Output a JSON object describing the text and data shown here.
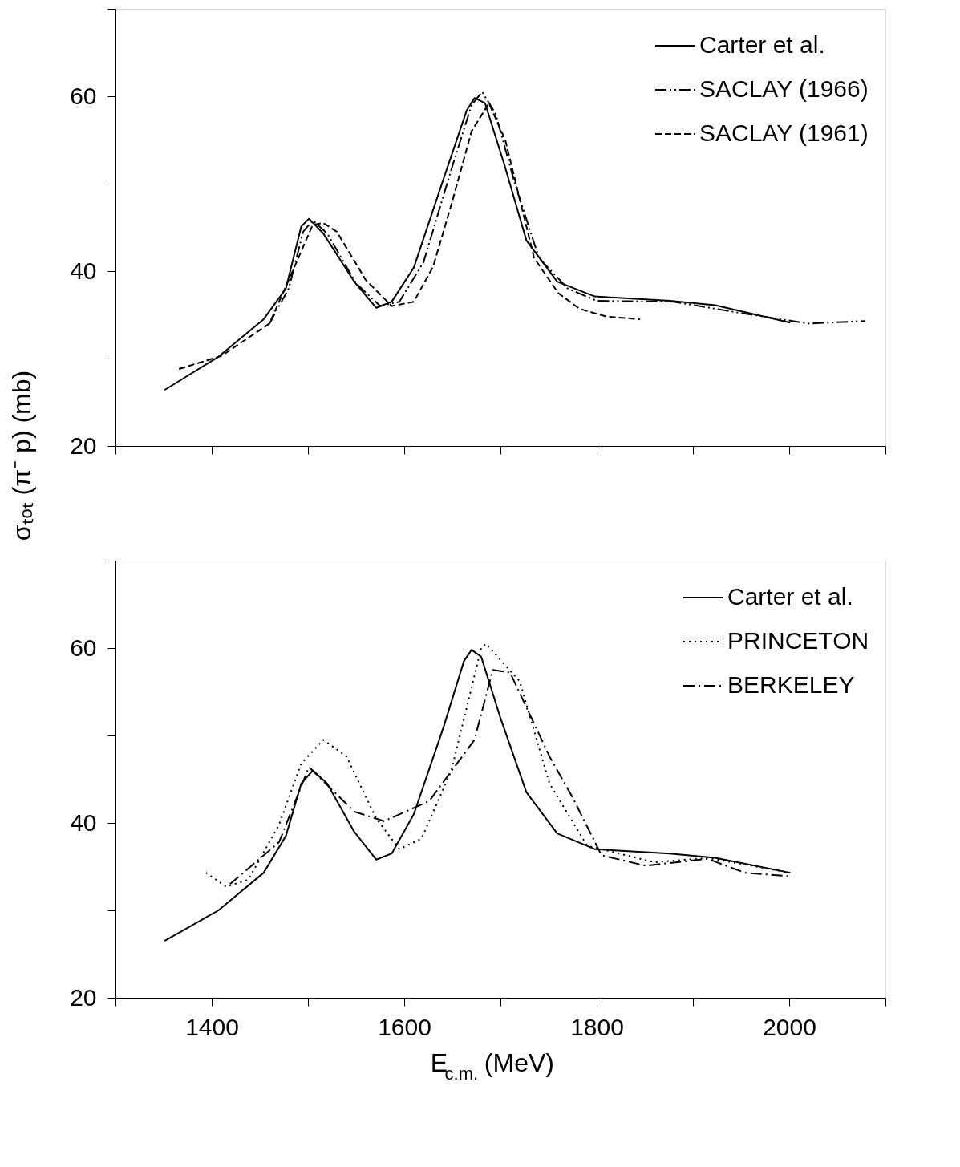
{
  "chart_data": [
    {
      "type": "line",
      "ylabel": "σₜₒₜ (π⁻ p) (mb)",
      "xlim": [
        1300,
        2100
      ],
      "ylim": [
        20,
        70
      ],
      "xticks": [
        {
          "value": 1300,
          "label": null
        },
        {
          "value": 1400,
          "label": null
        },
        {
          "value": 1500,
          "label": null
        },
        {
          "value": 1600,
          "label": null
        },
        {
          "value": 1700,
          "label": null
        },
        {
          "value": 1800,
          "label": null
        },
        {
          "value": 1900,
          "label": null
        },
        {
          "value": 2000,
          "label": null
        },
        {
          "value": 2100,
          "label": null
        }
      ],
      "yticks": [
        20,
        {
          "value": 30,
          "label": null
        },
        40,
        {
          "value": 50,
          "label": null
        },
        60,
        {
          "value": 70,
          "label": null
        }
      ],
      "tick_labels": "y",
      "grid": false,
      "legend": "top right",
      "marker": "none",
      "series": [
        {
          "name": "Carter et al.",
          "color": "#000000",
          "line_style": "solid",
          "x": [
            1351,
            1407,
            1454,
            1477,
            1493,
            1501,
            1516,
            1548,
            1571,
            1587,
            1610,
            1641,
            1665,
            1673,
            1684,
            1704,
            1727,
            1759,
            1798,
            1876,
            1923,
            2001
          ],
          "values": [
            26.4,
            30.2,
            34.5,
            38,
            45.1,
            46,
            44.3,
            38.8,
            35.8,
            36.5,
            40.4,
            50.6,
            58.4,
            59.8,
            59.2,
            52.2,
            43.5,
            38.8,
            37.1,
            36.6,
            36.1,
            34.1
          ]
        },
        {
          "name": "SACLAY (1966)",
          "color": "#000000",
          "line_style": "dashdotdot",
          "x": [
            1460,
            1480,
            1495,
            1505,
            1520,
            1550,
            1575,
            1595,
            1620,
            1650,
            1670,
            1681,
            1695,
            1715,
            1740,
            1770,
            1800,
            1880,
            1950,
            2020,
            2079
          ],
          "values": [
            34,
            38,
            44.5,
            45.8,
            44.3,
            38.6,
            36,
            36.5,
            41,
            52,
            59,
            60.5,
            58,
            50,
            41.5,
            38,
            36.6,
            36.5,
            35.2,
            34,
            34.3
          ]
        },
        {
          "name": "SACLAY (1961)",
          "color": "#000000",
          "line_style": "dashed",
          "x": [
            1366,
            1410,
            1460,
            1490,
            1505,
            1516,
            1530,
            1560,
            1587,
            1610,
            1630,
            1650,
            1670,
            1688,
            1705,
            1735,
            1760,
            1782,
            1810,
            1845
          ],
          "values": [
            28.8,
            30.3,
            34,
            41.5,
            45.3,
            45.5,
            44.5,
            39,
            36,
            36.5,
            40.5,
            48,
            56,
            59.2,
            55,
            41.5,
            37.5,
            35.7,
            34.8,
            34.5
          ]
        }
      ]
    },
    {
      "type": "line",
      "xlabel": "E$_{c.m.}$ (MeV)",
      "xlim": [
        1300,
        2100
      ],
      "ylim": [
        20,
        70
      ],
      "xticks": [
        {
          "value": 1300,
          "label": null
        },
        1400,
        {
          "value": 1500,
          "label": null
        },
        1600,
        {
          "value": 1700,
          "label": null
        },
        1800,
        {
          "value": 1900,
          "label": null
        },
        2000,
        {
          "value": 2100,
          "label": null
        }
      ],
      "yticks": [
        20,
        {
          "value": 30,
          "label": null
        },
        40,
        {
          "value": 50,
          "label": null
        },
        60,
        {
          "value": 70,
          "label": null
        }
      ],
      "grid": false,
      "legend": "top right",
      "marker": "none",
      "series": [
        {
          "name": "Carter et al.",
          "color": "#000000",
          "line_style": "solid",
          "x": [
            1351,
            1407,
            1454,
            1477,
            1493,
            1505,
            1520,
            1548,
            1571,
            1587,
            1610,
            1641,
            1662,
            1670,
            1680,
            1700,
            1727,
            1759,
            1798,
            1876,
            1923,
            2001
          ],
          "values": [
            26.5,
            30,
            34.3,
            38.5,
            44.5,
            46,
            44.5,
            39,
            35.8,
            36.5,
            41,
            51,
            58.5,
            59.8,
            59,
            52,
            43.5,
            38.8,
            37,
            36.5,
            36,
            34.3
          ]
        },
        {
          "name": "PRINCETON",
          "color": "#000000",
          "line_style": "dotted",
          "x": [
            1394,
            1415,
            1438,
            1470,
            1493,
            1516,
            1540,
            1571,
            1595,
            1618,
            1649,
            1680,
            1685,
            1720,
            1751,
            1790,
            1860,
            1915,
            2001
          ],
          "values": [
            34.3,
            32.7,
            33.5,
            39.8,
            46.8,
            49.5,
            47.6,
            40.5,
            37,
            38.2,
            46,
            60,
            60.5,
            56.2,
            44.5,
            37.4,
            35.5,
            36,
            34.3
          ]
        },
        {
          "name": "BERKELEY",
          "color": "#000000",
          "line_style": "dashdot",
          "x": [
            1419,
            1470,
            1501,
            1548,
            1579,
            1626,
            1673,
            1692,
            1710,
            1751,
            1775,
            1805,
            1851,
            1915,
            1954,
            2001
          ],
          "values": [
            33,
            37.8,
            46.4,
            41.3,
            40.2,
            42.5,
            49.5,
            57.5,
            57.2,
            47.6,
            42.9,
            36.3,
            35.1,
            35.9,
            34.3,
            33.9
          ]
        }
      ]
    }
  ]
}
